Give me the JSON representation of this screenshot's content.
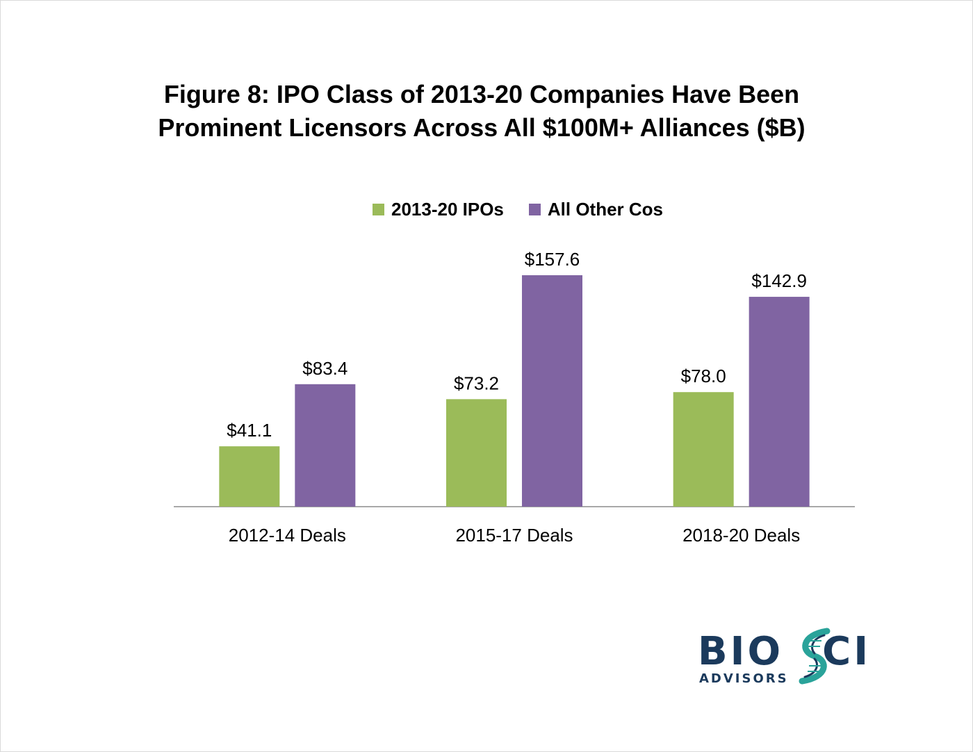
{
  "chart_data": {
    "type": "bar",
    "title_lines": [
      "Figure 8:  IPO Class of 2013-20 Companies Have Been",
      "Prominent Licensors Across All $100M+ Alliances ($B)"
    ],
    "categories": [
      "2012-14 Deals",
      "2015-17 Deals",
      "2018-20 Deals"
    ],
    "series": [
      {
        "name": "2013-20 IPOs",
        "color": "#9bbb59",
        "values": [
          41.1,
          73.2,
          78.0
        ],
        "labels": [
          "$41.1",
          "$73.2",
          "$78.0"
        ]
      },
      {
        "name": "All Other Cos",
        "color": "#8064a2",
        "values": [
          83.4,
          157.6,
          142.9
        ],
        "labels": [
          "$83.4",
          "$157.6",
          "$142.9"
        ]
      }
    ],
    "ylim": [
      0,
      165
    ],
    "grid": false,
    "legend": "top-center",
    "xlabel": "",
    "ylabel": ""
  },
  "logo": {
    "main_left": "BIO",
    "main_right": "CI",
    "sub": "ADVISORS",
    "helix_icon": "dna-helix-icon",
    "colors": {
      "navy": "#1b3a5c",
      "teal": "#2aa39a"
    }
  }
}
